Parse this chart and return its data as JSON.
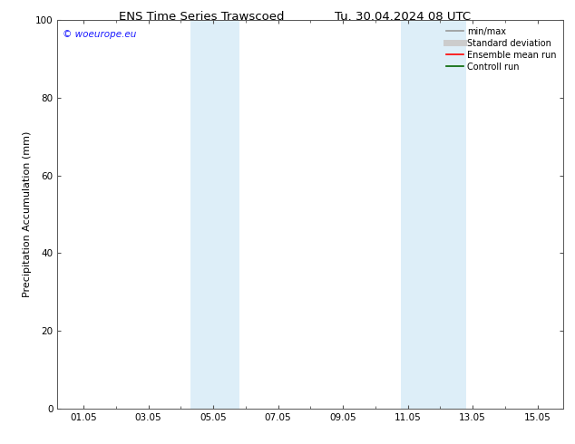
{
  "title_left": "ENS Time Series Trawscoed",
  "title_right": "Tu. 30.04.2024 08 UTC",
  "ylabel": "Precipitation Accumulation (mm)",
  "ylim": [
    0,
    100
  ],
  "yticks": [
    0,
    20,
    40,
    60,
    80,
    100
  ],
  "xtick_labels": [
    "01.05",
    "03.05",
    "05.05",
    "07.05",
    "09.05",
    "11.05",
    "13.05",
    "15.05"
  ],
  "xtick_positions": [
    1,
    3,
    5,
    7,
    9,
    11,
    13,
    15
  ],
  "xlim": [
    0.2,
    15.8
  ],
  "shaded_bands": [
    {
      "xstart": 4.3,
      "xend": 5.8,
      "color": "#ddeef8"
    },
    {
      "xstart": 10.8,
      "xend": 12.8,
      "color": "#ddeef8"
    }
  ],
  "watermark": "© woeurope.eu",
  "watermark_color": "#1a1aff",
  "legend_items": [
    {
      "label": "min/max",
      "color": "#999999",
      "lw": 1.2
    },
    {
      "label": "Standard deviation",
      "color": "#cccccc",
      "lw": 5
    },
    {
      "label": "Ensemble mean run",
      "color": "#ff0000",
      "lw": 1.2
    },
    {
      "label": "Controll run",
      "color": "#006400",
      "lw": 1.2
    }
  ],
  "background_color": "#ffffff",
  "title_fontsize": 9.5,
  "ylabel_fontsize": 8,
  "tick_fontsize": 7.5,
  "legend_fontsize": 7,
  "watermark_fontsize": 7.5
}
